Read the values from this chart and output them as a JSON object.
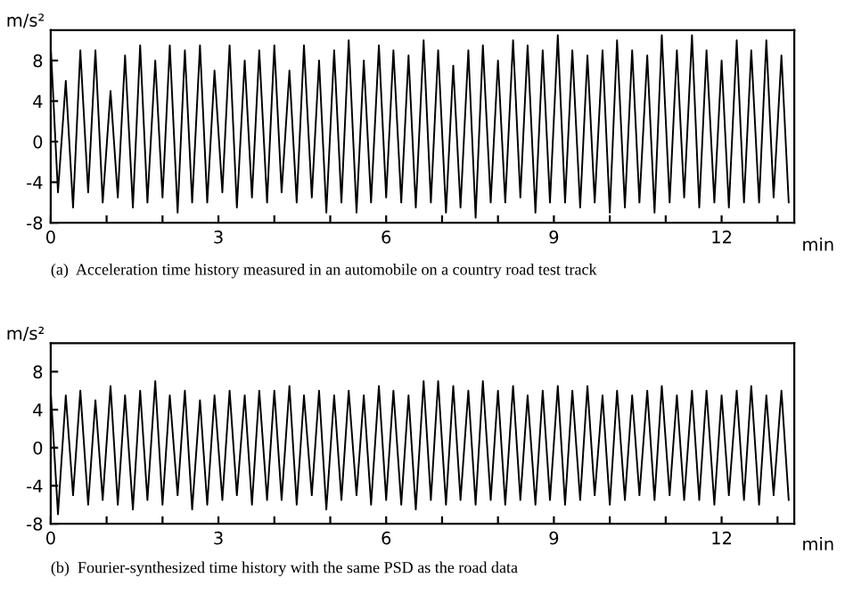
{
  "chart_data": [
    {
      "type": "line",
      "xlabel": "min",
      "ylabel": "m/s²",
      "annotations": [
        "(a)  Acceleration time history measured in an automobile on a country road test track"
      ],
      "xlim": [
        0,
        13.3
      ],
      "ylim": [
        -8,
        11
      ],
      "xticks": [
        0,
        {
          "value": 1,
          "label": null
        },
        {
          "value": 2,
          "label": null
        },
        3,
        {
          "value": 4,
          "label": null
        },
        {
          "value": 5,
          "label": null
        },
        6,
        {
          "value": 7,
          "label": null
        },
        {
          "value": 8,
          "label": null
        },
        9,
        {
          "value": 10,
          "label": null
        },
        {
          "value": 11,
          "label": null
        },
        12,
        {
          "value": 13,
          "label": null
        }
      ],
      "yticks": [
        -8,
        -4,
        0,
        4,
        8
      ],
      "x": [
        0,
        0.13,
        0.27,
        0.4,
        0.53,
        0.67,
        0.8,
        0.93,
        1.07,
        1.2,
        1.33,
        1.47,
        1.6,
        1.73,
        1.87,
        2,
        2.13,
        2.27,
        2.4,
        2.53,
        2.67,
        2.8,
        2.93,
        3.07,
        3.2,
        3.33,
        3.47,
        3.6,
        3.73,
        3.87,
        4,
        4.13,
        4.27,
        4.4,
        4.53,
        4.67,
        4.8,
        4.93,
        5.07,
        5.2,
        5.33,
        5.47,
        5.6,
        5.73,
        5.87,
        6,
        6.13,
        6.27,
        6.4,
        6.53,
        6.67,
        6.8,
        6.93,
        7.07,
        7.2,
        7.33,
        7.47,
        7.6,
        7.73,
        7.87,
        8,
        8.13,
        8.27,
        8.4,
        8.53,
        8.67,
        8.8,
        8.93,
        9.07,
        9.2,
        9.33,
        9.47,
        9.6,
        9.73,
        9.87,
        10,
        10.13,
        10.27,
        10.4,
        10.53,
        10.67,
        10.8,
        10.93,
        11.07,
        11.2,
        11.33,
        11.47,
        11.6,
        11.73,
        11.87,
        12,
        12.13,
        12.27,
        12.4,
        12.53,
        12.67,
        12.8,
        12.93,
        13.07,
        13.2
      ],
      "series": [
        {
          "color": "#000000",
          "line_style": "solid",
          "values": [
            9.5,
            -5,
            6,
            -6.5,
            9,
            -5,
            9,
            -6,
            5,
            -5.5,
            8.5,
            -6.5,
            9.5,
            -6,
            8,
            -5.5,
            9.5,
            -7,
            9,
            -6,
            9.5,
            -6,
            7,
            -5,
            9.5,
            -6.5,
            8,
            -5.5,
            9,
            -6,
            9.5,
            -5,
            7,
            -6,
            9.5,
            -5.5,
            8,
            -7,
            9,
            -6,
            10,
            -7,
            8,
            -6,
            9.5,
            -5.5,
            9,
            -6,
            8.5,
            -6.5,
            10,
            -6,
            9,
            -7,
            7.5,
            -6.5,
            9,
            -7.5,
            9.5,
            -6,
            8,
            -6,
            10,
            -5.5,
            9.5,
            -7,
            9,
            -6,
            10.5,
            -6,
            9,
            -6.5,
            8.5,
            -6,
            9,
            -7,
            10,
            -6.5,
            9,
            -6,
            8.5,
            -7,
            10.5,
            -6,
            9,
            -5.5,
            10.5,
            -6.5,
            9,
            -6,
            8,
            -6.5,
            10,
            -6,
            9,
            -6,
            10,
            -5.5,
            8.5,
            -6
          ]
        }
      ]
    },
    {
      "type": "line",
      "xlabel": "min",
      "ylabel": "m/s²",
      "annotations": [
        "(b)  Fourier-synthesized time history with the same PSD as the road data"
      ],
      "xlim": [
        0,
        13.3
      ],
      "ylim": [
        -8,
        11
      ],
      "xticks": [
        0,
        {
          "value": 1,
          "label": null
        },
        {
          "value": 2,
          "label": null
        },
        3,
        {
          "value": 4,
          "label": null
        },
        {
          "value": 5,
          "label": null
        },
        6,
        {
          "value": 7,
          "label": null
        },
        {
          "value": 8,
          "label": null
        },
        9,
        {
          "value": 10,
          "label": null
        },
        {
          "value": 11,
          "label": null
        },
        12,
        {
          "value": 13,
          "label": null
        }
      ],
      "yticks": [
        -8,
        -4,
        0,
        4,
        8
      ],
      "x": [
        0,
        0.13,
        0.27,
        0.4,
        0.53,
        0.67,
        0.8,
        0.93,
        1.07,
        1.2,
        1.33,
        1.47,
        1.6,
        1.73,
        1.87,
        2,
        2.13,
        2.27,
        2.4,
        2.53,
        2.67,
        2.8,
        2.93,
        3.07,
        3.2,
        3.33,
        3.47,
        3.6,
        3.73,
        3.87,
        4,
        4.13,
        4.27,
        4.4,
        4.53,
        4.67,
        4.8,
        4.93,
        5.07,
        5.2,
        5.33,
        5.47,
        5.6,
        5.73,
        5.87,
        6,
        6.13,
        6.27,
        6.4,
        6.53,
        6.67,
        6.8,
        6.93,
        7.07,
        7.2,
        7.33,
        7.47,
        7.6,
        7.73,
        7.87,
        8,
        8.13,
        8.27,
        8.4,
        8.53,
        8.67,
        8.8,
        8.93,
        9.07,
        9.2,
        9.33,
        9.47,
        9.6,
        9.73,
        9.87,
        10,
        10.13,
        10.27,
        10.4,
        10.53,
        10.67,
        10.8,
        10.93,
        11.07,
        11.2,
        11.33,
        11.47,
        11.6,
        11.73,
        11.87,
        12,
        12.13,
        12.27,
        12.4,
        12.53,
        12.67,
        12.8,
        12.93,
        13.07,
        13.2
      ],
      "series": [
        {
          "color": "#000000",
          "line_style": "solid",
          "values": [
            6,
            -7,
            5.5,
            -5,
            6,
            -6,
            5,
            -5.5,
            6.5,
            -6,
            5.5,
            -6.5,
            6,
            -5.5,
            7,
            -6,
            5.5,
            -5,
            6,
            -6.5,
            5,
            -6,
            5.5,
            -5.5,
            6,
            -5,
            5.5,
            -6,
            6,
            -5.5,
            6,
            -5.5,
            6.5,
            -6,
            5.5,
            -5,
            6,
            -6.5,
            5.5,
            -5.5,
            6,
            -5,
            5.5,
            -6,
            6.5,
            -5.5,
            6,
            -6,
            5.5,
            -6.5,
            7,
            -5.5,
            7,
            -6,
            6.5,
            -5.5,
            6,
            -6,
            7,
            -5.5,
            6,
            -6,
            6.5,
            -5.5,
            5.5,
            -6,
            6,
            -5.5,
            6.5,
            -6,
            6,
            -5.5,
            6.5,
            -5,
            5.5,
            -6,
            6,
            -5.5,
            5.5,
            -5,
            6,
            -5.5,
            6.5,
            -5,
            5.5,
            -5.5,
            6,
            -5.5,
            6,
            -6,
            5.5,
            -5,
            6,
            -5.5,
            6.5,
            -6,
            5.5,
            -5,
            6,
            -5.5
          ]
        }
      ]
    }
  ]
}
